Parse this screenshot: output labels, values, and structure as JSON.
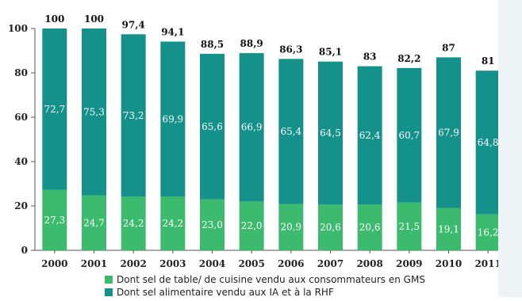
{
  "chart_data": {
    "type": "bar",
    "stacked": true,
    "categories": [
      "2000",
      "2001",
      "2002",
      "2003",
      "2004",
      "2005",
      "2006",
      "2007",
      "2008",
      "2009",
      "2010",
      "2011"
    ],
    "series": [
      {
        "name": "Dont sel de table/ de cuisine vendu aux consommateurs en GMS",
        "color": "#3cba6e",
        "values": [
          27.3,
          24.7,
          24.2,
          24.2,
          23.0,
          22.0,
          20.9,
          20.6,
          20.6,
          21.5,
          19.1,
          16.2
        ],
        "labels": [
          "27,3",
          "24,7",
          "24,2",
          "24,2",
          "23,0",
          "22,0",
          "20,9",
          "20,6",
          "20,6",
          "21,5",
          "19,1",
          "16,2"
        ]
      },
      {
        "name": "Dont sel alimentaire vendu aux IA et à la RHF",
        "color": "#13918a",
        "values": [
          72.7,
          75.3,
          73.2,
          69.9,
          65.6,
          66.9,
          65.4,
          64.5,
          62.4,
          60.7,
          67.9,
          64.8
        ],
        "labels": [
          "72,7",
          "75,3",
          "73,2",
          "69,9",
          "65,6",
          "66,9",
          "65,4",
          "64,5",
          "62,4",
          "60,7",
          "67,9",
          "64,8"
        ]
      }
    ],
    "totals": [
      100,
      100,
      97.4,
      94.1,
      88.5,
      88.9,
      86.3,
      85.1,
      83,
      82.2,
      87,
      81
    ],
    "total_labels": [
      "100",
      "100",
      "97,4",
      "94,1",
      "88,5",
      "88,9",
      "86,3",
      "85,1",
      "83",
      "82,2",
      "87",
      "81"
    ],
    "ylim": [
      0,
      100
    ],
    "yticks": [
      0,
      20,
      40,
      60,
      80,
      100
    ],
    "grid": false,
    "legend_position": "bottom"
  }
}
